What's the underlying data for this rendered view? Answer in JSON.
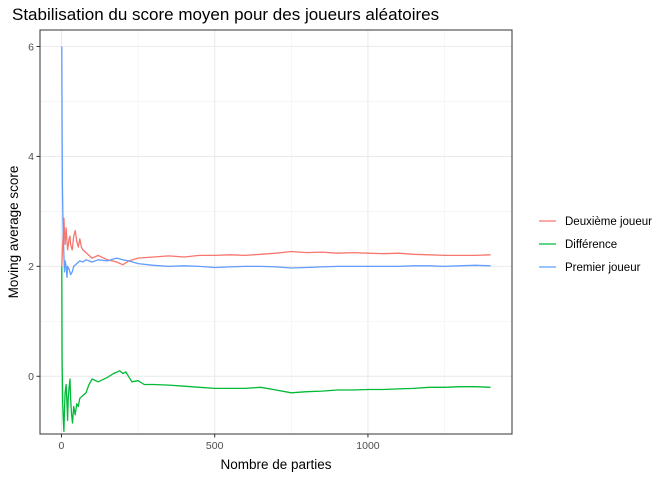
{
  "chart_data": {
    "type": "line",
    "title": "Stabilisation du score moyen pour des joueurs aléatoires",
    "xlabel": "Nombre de parties",
    "ylabel": "Moving average score",
    "xlim": [
      -70,
      1470
    ],
    "ylim": [
      -1.05,
      6.3
    ],
    "x_ticks": [
      0,
      500,
      1000
    ],
    "y_ticks": [
      0,
      2,
      4,
      6
    ],
    "grid": true,
    "legend_position": "right",
    "series": [
      {
        "name": "Deuxième joueur",
        "color": "#F8766D",
        "points": [
          [
            1,
            2.0
          ],
          [
            3,
            2.3
          ],
          [
            5,
            2.5
          ],
          [
            8,
            2.88
          ],
          [
            10,
            2.6
          ],
          [
            12,
            2.4
          ],
          [
            15,
            2.7
          ],
          [
            18,
            2.45
          ],
          [
            20,
            2.3
          ],
          [
            25,
            2.5
          ],
          [
            28,
            2.55
          ],
          [
            30,
            2.4
          ],
          [
            35,
            2.3
          ],
          [
            40,
            2.55
          ],
          [
            45,
            2.65
          ],
          [
            50,
            2.45
          ],
          [
            55,
            2.35
          ],
          [
            60,
            2.5
          ],
          [
            65,
            2.35
          ],
          [
            70,
            2.3
          ],
          [
            80,
            2.25
          ],
          [
            90,
            2.2
          ],
          [
            100,
            2.15
          ],
          [
            120,
            2.2
          ],
          [
            150,
            2.12
          ],
          [
            180,
            2.08
          ],
          [
            200,
            2.03
          ],
          [
            220,
            2.1
          ],
          [
            250,
            2.15
          ],
          [
            300,
            2.17
          ],
          [
            350,
            2.19
          ],
          [
            400,
            2.17
          ],
          [
            450,
            2.2
          ],
          [
            500,
            2.2
          ],
          [
            550,
            2.21
          ],
          [
            600,
            2.2
          ],
          [
            650,
            2.22
          ],
          [
            700,
            2.24
          ],
          [
            750,
            2.27
          ],
          [
            800,
            2.25
          ],
          [
            850,
            2.26
          ],
          [
            900,
            2.24
          ],
          [
            950,
            2.25
          ],
          [
            1000,
            2.24
          ],
          [
            1050,
            2.23
          ],
          [
            1100,
            2.24
          ],
          [
            1150,
            2.22
          ],
          [
            1200,
            2.21
          ],
          [
            1250,
            2.2
          ],
          [
            1300,
            2.2
          ],
          [
            1350,
            2.2
          ],
          [
            1400,
            2.21
          ]
        ]
      },
      {
        "name": "Différence",
        "color": "#00BA38",
        "points": [
          [
            1,
            2.0
          ],
          [
            2,
            0.3
          ],
          [
            4,
            -0.5
          ],
          [
            6,
            -0.8
          ],
          [
            8,
            -1.0
          ],
          [
            10,
            -0.6
          ],
          [
            12,
            -0.3
          ],
          [
            15,
            -0.15
          ],
          [
            18,
            -0.5
          ],
          [
            20,
            -0.8
          ],
          [
            22,
            -0.4
          ],
          [
            25,
            -0.2
          ],
          [
            28,
            -0.05
          ],
          [
            30,
            -0.4
          ],
          [
            33,
            -0.7
          ],
          [
            36,
            -0.85
          ],
          [
            40,
            -0.55
          ],
          [
            45,
            -0.7
          ],
          [
            50,
            -0.5
          ],
          [
            55,
            -0.55
          ],
          [
            60,
            -0.4
          ],
          [
            70,
            -0.35
          ],
          [
            80,
            -0.3
          ],
          [
            90,
            -0.15
          ],
          [
            100,
            -0.05
          ],
          [
            120,
            -0.1
          ],
          [
            150,
            -0.02
          ],
          [
            170,
            0.05
          ],
          [
            190,
            0.1
          ],
          [
            200,
            0.05
          ],
          [
            210,
            0.08
          ],
          [
            230,
            -0.1
          ],
          [
            250,
            -0.08
          ],
          [
            270,
            -0.15
          ],
          [
            300,
            -0.15
          ],
          [
            350,
            -0.16
          ],
          [
            400,
            -0.18
          ],
          [
            450,
            -0.2
          ],
          [
            500,
            -0.22
          ],
          [
            550,
            -0.22
          ],
          [
            600,
            -0.22
          ],
          [
            650,
            -0.2
          ],
          [
            700,
            -0.25
          ],
          [
            750,
            -0.3
          ],
          [
            800,
            -0.28
          ],
          [
            850,
            -0.27
          ],
          [
            900,
            -0.25
          ],
          [
            950,
            -0.25
          ],
          [
            1000,
            -0.24
          ],
          [
            1050,
            -0.24
          ],
          [
            1100,
            -0.23
          ],
          [
            1150,
            -0.22
          ],
          [
            1200,
            -0.2
          ],
          [
            1250,
            -0.2
          ],
          [
            1300,
            -0.19
          ],
          [
            1350,
            -0.19
          ],
          [
            1400,
            -0.2
          ]
        ]
      },
      {
        "name": "Premier joueur",
        "color": "#619CFF",
        "points": [
          [
            1,
            6.0
          ],
          [
            2,
            4.5
          ],
          [
            3,
            3.5
          ],
          [
            5,
            2.8
          ],
          [
            8,
            2.2
          ],
          [
            10,
            1.9
          ],
          [
            12,
            2.1
          ],
          [
            15,
            2.0
          ],
          [
            18,
            1.8
          ],
          [
            20,
            2.0
          ],
          [
            25,
            1.95
          ],
          [
            30,
            1.85
          ],
          [
            35,
            1.9
          ],
          [
            40,
            2.0
          ],
          [
            50,
            2.05
          ],
          [
            60,
            2.1
          ],
          [
            70,
            2.08
          ],
          [
            80,
            2.12
          ],
          [
            90,
            2.1
          ],
          [
            100,
            2.08
          ],
          [
            120,
            2.12
          ],
          [
            150,
            2.1
          ],
          [
            180,
            2.15
          ],
          [
            200,
            2.12
          ],
          [
            220,
            2.1
          ],
          [
            250,
            2.05
          ],
          [
            300,
            2.02
          ],
          [
            350,
            2.0
          ],
          [
            400,
            2.01
          ],
          [
            450,
            2.0
          ],
          [
            500,
            1.98
          ],
          [
            550,
            1.99
          ],
          [
            600,
            2.0
          ],
          [
            650,
            2.0
          ],
          [
            700,
            1.99
          ],
          [
            750,
            1.97
          ],
          [
            800,
            1.98
          ],
          [
            850,
            1.99
          ],
          [
            900,
            2.0
          ],
          [
            950,
            2.0
          ],
          [
            1000,
            2.0
          ],
          [
            1050,
            2.0
          ],
          [
            1100,
            2.0
          ],
          [
            1150,
            2.01
          ],
          [
            1200,
            2.01
          ],
          [
            1250,
            2.0
          ],
          [
            1300,
            2.01
          ],
          [
            1350,
            2.02
          ],
          [
            1400,
            2.01
          ]
        ]
      }
    ]
  }
}
